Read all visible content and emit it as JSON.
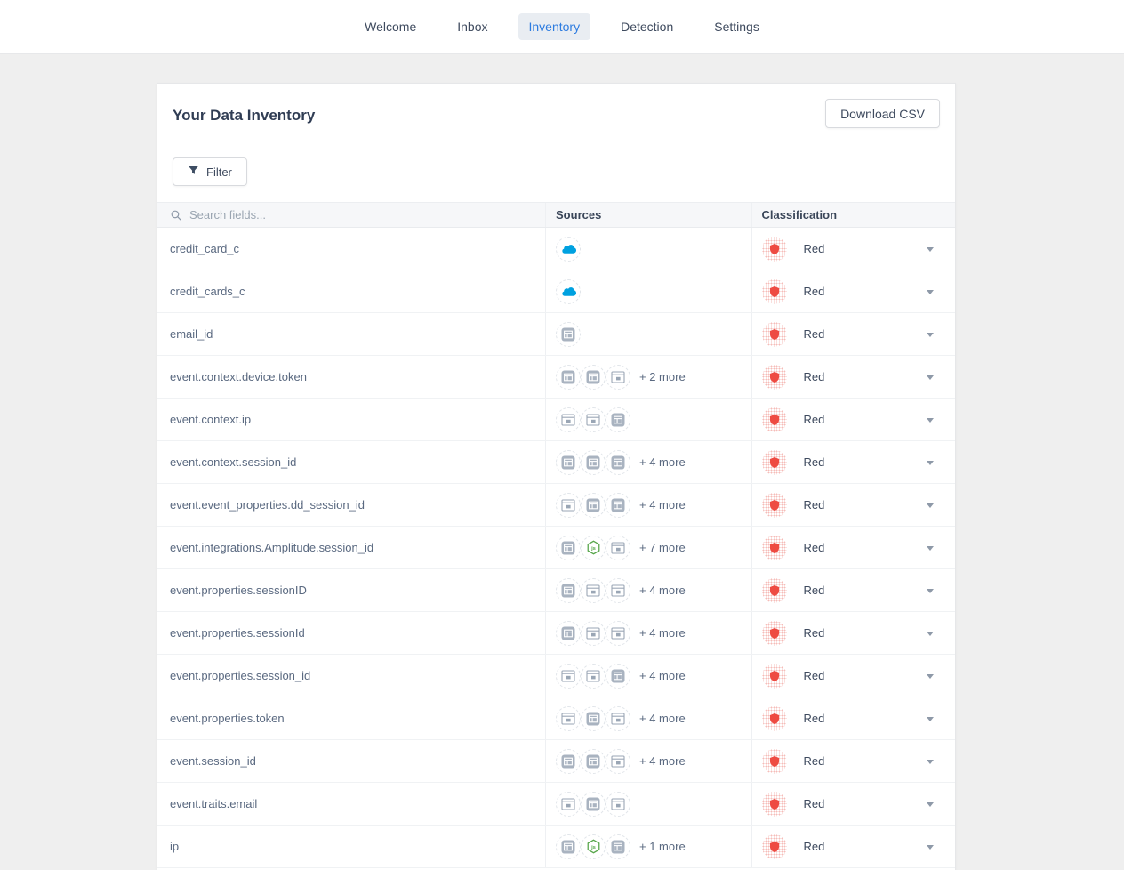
{
  "nav": {
    "items": [
      {
        "label": "Welcome",
        "active": false
      },
      {
        "label": "Inbox",
        "active": false
      },
      {
        "label": "Inventory",
        "active": true
      },
      {
        "label": "Detection",
        "active": false
      },
      {
        "label": "Settings",
        "active": false
      }
    ]
  },
  "card": {
    "title": "Your Data Inventory",
    "download_button": "Download CSV",
    "filter_button": "Filter"
  },
  "table": {
    "search_placeholder": "Search fields...",
    "columns": {
      "sources": "Sources",
      "classification": "Classification"
    },
    "rows": [
      {
        "field": "credit_card_c",
        "sources": [
          "salesforce"
        ],
        "more": "",
        "classification": "Red"
      },
      {
        "field": "credit_cards_c",
        "sources": [
          "salesforce"
        ],
        "more": "",
        "classification": "Red"
      },
      {
        "field": "email_id",
        "sources": [
          "webapp"
        ],
        "more": "",
        "classification": "Red"
      },
      {
        "field": "event.context.device.token",
        "sources": [
          "webapp",
          "webapp",
          "javascript"
        ],
        "more": "+ 2 more",
        "classification": "Red"
      },
      {
        "field": "event.context.ip",
        "sources": [
          "javascript",
          "javascript",
          "webapp"
        ],
        "more": "",
        "classification": "Red"
      },
      {
        "field": "event.context.session_id",
        "sources": [
          "webapp",
          "webapp",
          "webapp"
        ],
        "more": "+ 4 more",
        "classification": "Red"
      },
      {
        "field": "event.event_properties.dd_session_id",
        "sources": [
          "javascript",
          "webapp",
          "webapp"
        ],
        "more": "+ 4 more",
        "classification": "Red"
      },
      {
        "field": "event.integrations.Amplitude.session_id",
        "sources": [
          "webapp",
          "nodejs",
          "javascript"
        ],
        "more": "+ 7 more",
        "classification": "Red"
      },
      {
        "field": "event.properties.sessionID",
        "sources": [
          "webapp",
          "javascript",
          "javascript"
        ],
        "more": "+ 4 more",
        "classification": "Red"
      },
      {
        "field": "event.properties.sessionId",
        "sources": [
          "webapp",
          "javascript",
          "javascript"
        ],
        "more": "+ 4 more",
        "classification": "Red"
      },
      {
        "field": "event.properties.session_id",
        "sources": [
          "javascript",
          "javascript",
          "webapp"
        ],
        "more": "+ 4 more",
        "classification": "Red"
      },
      {
        "field": "event.properties.token",
        "sources": [
          "javascript",
          "webapp",
          "javascript"
        ],
        "more": "+ 4 more",
        "classification": "Red"
      },
      {
        "field": "event.session_id",
        "sources": [
          "webapp",
          "webapp",
          "javascript"
        ],
        "more": "+ 4 more",
        "classification": "Red"
      },
      {
        "field": "event.traits.email",
        "sources": [
          "javascript",
          "webapp",
          "javascript"
        ],
        "more": "",
        "classification": "Red"
      },
      {
        "field": "ip",
        "sources": [
          "webapp",
          "nodejs",
          "webapp"
        ],
        "more": "+ 1 more",
        "classification": "Red"
      }
    ]
  },
  "colors": {
    "accent_blue": "#2e7ce0",
    "active_tab_bg": "#e9edf2",
    "salesforce_blue": "#00a1e0",
    "nodejs_green": "#57a64a",
    "classification_red": "#ee4b42",
    "icon_gray": "#a9b3c0",
    "header_bg": "#f6f7f9"
  }
}
